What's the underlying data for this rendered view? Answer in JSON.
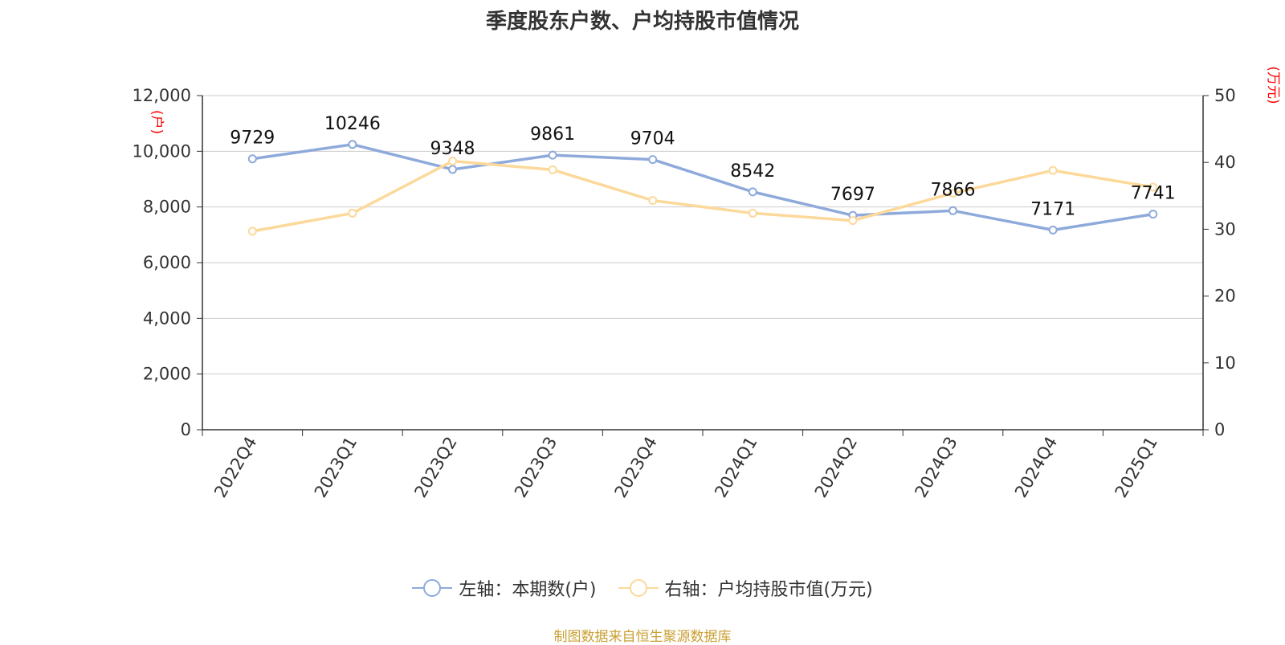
{
  "title": "季度股东户数、户均持股市值情况",
  "source": "制图数据来自恒生聚源数据库",
  "legend": {
    "left_series": "左轴：本期数(户)",
    "right_series": "右轴：户均持股市值(万元)"
  },
  "colors": {
    "left_series": "#8eaadb",
    "right_series": "#fcd99a",
    "unit_label": "#ff0000",
    "source": "#c9a033"
  },
  "chart_data": {
    "type": "line",
    "categories": [
      "2022Q4",
      "2023Q1",
      "2023Q2",
      "2023Q3",
      "2023Q4",
      "2024Q1",
      "2024Q2",
      "2024Q3",
      "2024Q4",
      "2025Q1"
    ],
    "left_axis": {
      "unit": "(户)",
      "ylim": [
        0,
        12000
      ],
      "ticks": [
        "0",
        "2,000",
        "4,000",
        "6,000",
        "8,000",
        "10,000",
        "12,000"
      ]
    },
    "right_axis": {
      "unit": "(万元)",
      "ylim": [
        0,
        50
      ],
      "ticks": [
        "0",
        "10",
        "20",
        "30",
        "40",
        "50"
      ]
    },
    "series": [
      {
        "name": "左轴：本期数(户)",
        "axis": "left",
        "values": [
          9729,
          10246,
          9348,
          9861,
          9704,
          8542,
          7697,
          7866,
          7171,
          7741
        ],
        "labels": [
          "9729",
          "10246",
          "9348",
          "9861",
          "9704",
          "8542",
          "7697",
          "7866",
          "7171",
          "7741"
        ]
      },
      {
        "name": "右轴：户均持股市值(万元)",
        "axis": "right",
        "values": [
          29.7,
          32.4,
          40.2,
          38.9,
          34.3,
          32.4,
          31.3,
          35.4,
          38.8,
          36.3
        ]
      }
    ],
    "grid": true,
    "legend_position": "bottom"
  }
}
